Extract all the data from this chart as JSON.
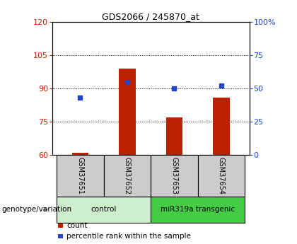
{
  "title": "GDS2066 / 245870_at",
  "samples": [
    "GSM37651",
    "GSM37652",
    "GSM37653",
    "GSM37654"
  ],
  "counts": [
    61,
    99,
    77,
    86
  ],
  "percentiles": [
    43,
    55,
    50,
    52
  ],
  "ylim_left": [
    60,
    120
  ],
  "ylim_right": [
    0,
    100
  ],
  "yticks_left": [
    60,
    75,
    90,
    105,
    120
  ],
  "yticks_right": [
    0,
    25,
    50,
    75,
    100
  ],
  "ytick_labels_right": [
    "0",
    "25",
    "50",
    "75",
    "100%"
  ],
  "bar_color": "#bb2200",
  "dot_color": "#2244cc",
  "bar_bottom": 60,
  "groups": [
    {
      "label": "control",
      "samples": [
        0,
        1
      ],
      "color": "#cceecc"
    },
    {
      "label": "miR319a transgenic",
      "samples": [
        2,
        3
      ],
      "color": "#44cc44"
    }
  ],
  "legend_items": [
    {
      "label": "count",
      "color": "#bb2200"
    },
    {
      "label": "percentile rank within the sample",
      "color": "#2244cc"
    }
  ],
  "genotype_label": "genotype/variation",
  "box_bg": "#cccccc",
  "bar_width": 0.35
}
